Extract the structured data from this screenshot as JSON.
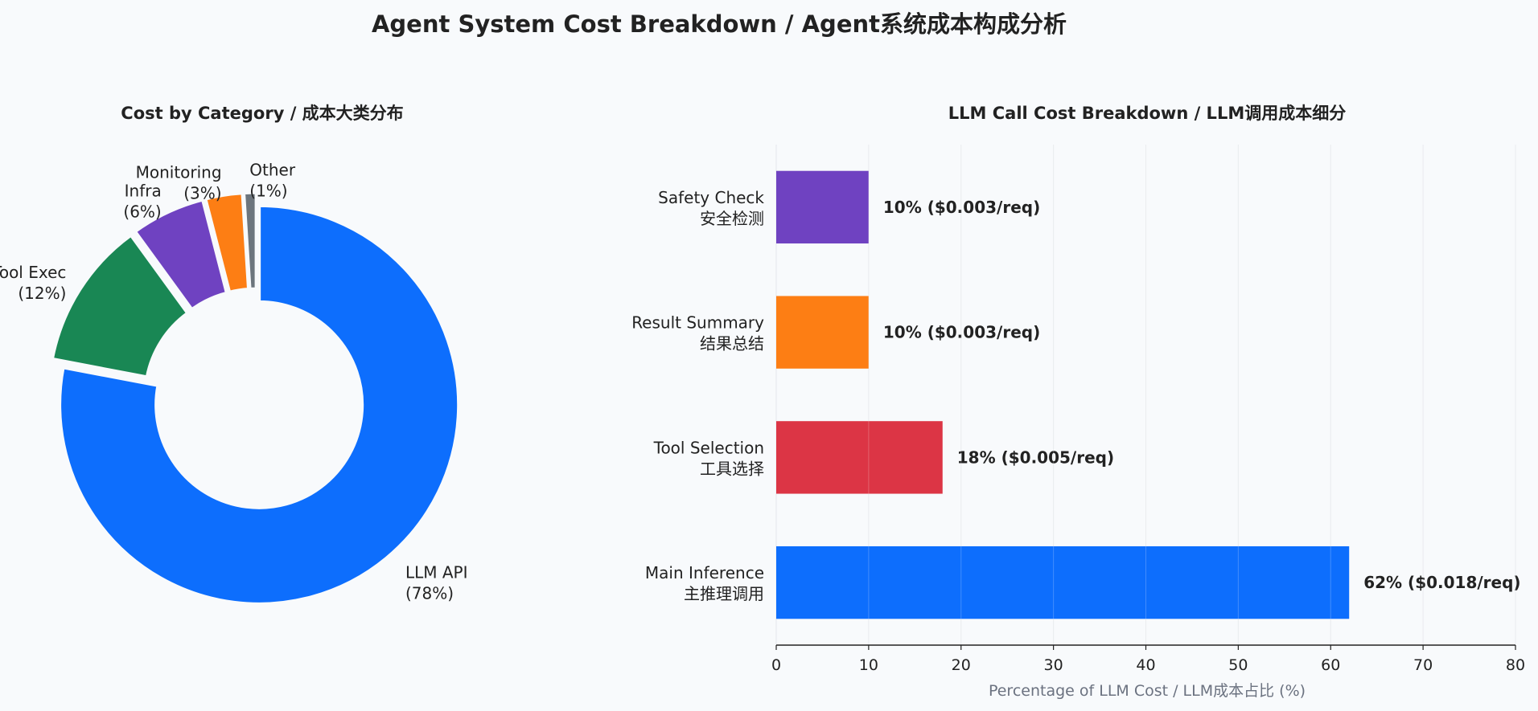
{
  "figure": {
    "title": "Agent System Cost Breakdown / Agent系统成本构成分析"
  },
  "chart_data": [
    {
      "type": "pie",
      "title": "Cost by Category / 成本大类分布",
      "slices": [
        {
          "label": "LLM API",
          "value": 78,
          "pct_label": "(78%)",
          "color": "#0d6efd"
        },
        {
          "label": "Tool Exec",
          "value": 12,
          "pct_label": "(12%)",
          "color": "#198754"
        },
        {
          "label": "Infra",
          "value": 6,
          "pct_label": "(6%)",
          "color": "#6f42c1"
        },
        {
          "label": "Monitoring",
          "value": 3,
          "pct_label": "(3%)",
          "color": "#fd7e14"
        },
        {
          "label": "Other",
          "value": 1,
          "pct_label": "(1%)",
          "color": "#6c757d"
        }
      ],
      "donut": true,
      "exploded": true
    },
    {
      "type": "bar",
      "orientation": "horizontal",
      "title": "LLM Call Cost Breakdown / LLM调用成本细分",
      "xlabel": "Percentage of LLM Cost / LLM成本占比 (%)",
      "xlim": [
        0,
        80
      ],
      "xticks": [
        "0",
        "10",
        "20",
        "30",
        "40",
        "50",
        "60",
        "70",
        "80"
      ],
      "grid": "vertical",
      "bars": [
        {
          "label_en": "Main Inference",
          "label_zh": "主推理调用",
          "value": 62,
          "value_label": "62%  ($0.018/req)",
          "color": "#0d6efd"
        },
        {
          "label_en": "Tool Selection",
          "label_zh": "工具选择",
          "value": 18,
          "value_label": "18%  ($0.005/req)",
          "color": "#dc3545"
        },
        {
          "label_en": "Result Summary",
          "label_zh": "结果总结",
          "value": 10,
          "value_label": "10%  ($0.003/req)",
          "color": "#fd7e14"
        },
        {
          "label_en": "Safety Check",
          "label_zh": "安全检测",
          "value": 10,
          "value_label": "10%  ($0.003/req)",
          "color": "#6f42c1"
        }
      ]
    }
  ]
}
